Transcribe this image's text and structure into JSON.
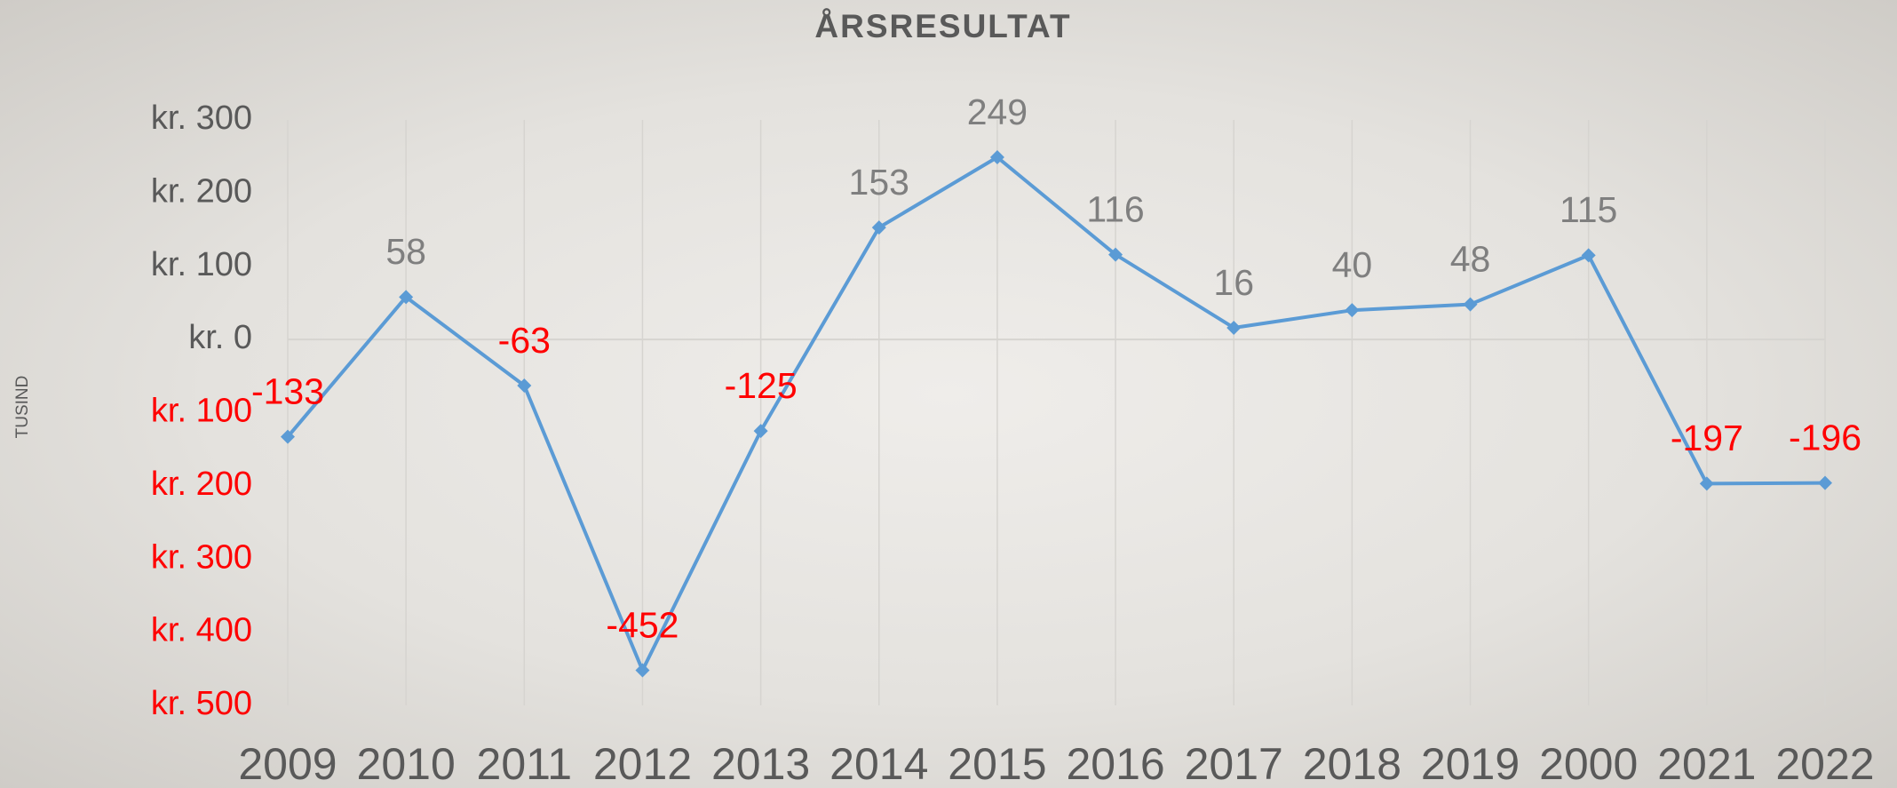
{
  "chart_data": {
    "type": "line",
    "title": "ÅRSRESULTAT",
    "y_label": "TUSIND",
    "categories": [
      "2009",
      "2010",
      "2011",
      "2012",
      "2013",
      "2014",
      "2015",
      "2016",
      "2017",
      "2018",
      "2019",
      "2000",
      "2021",
      "2022"
    ],
    "series": [
      {
        "name": "Årsresultat",
        "color": "#5b9bd5",
        "values": [
          -133,
          58,
          -63,
          -452,
          -125,
          153,
          249,
          116,
          16,
          40,
          48,
          115,
          -197,
          -196
        ]
      }
    ],
    "ylim": [
      -500,
      300
    ],
    "yticks": [
      {
        "value": 300,
        "label": "kr. 300"
      },
      {
        "value": 200,
        "label": "kr. 200"
      },
      {
        "value": 100,
        "label": "kr. 100"
      },
      {
        "value": 0,
        "label": "kr. 0"
      },
      {
        "value": -100,
        "label": "kr. 100"
      },
      {
        "value": -200,
        "label": "kr. 200"
      },
      {
        "value": -300,
        "label": "kr. 300"
      },
      {
        "value": -400,
        "label": "kr. 400"
      },
      {
        "value": -500,
        "label": "kr. 500"
      }
    ],
    "positive_label_color": "#7f7f7f",
    "negative_label_color": "#ff0000",
    "tick_label_color": "#595959"
  }
}
